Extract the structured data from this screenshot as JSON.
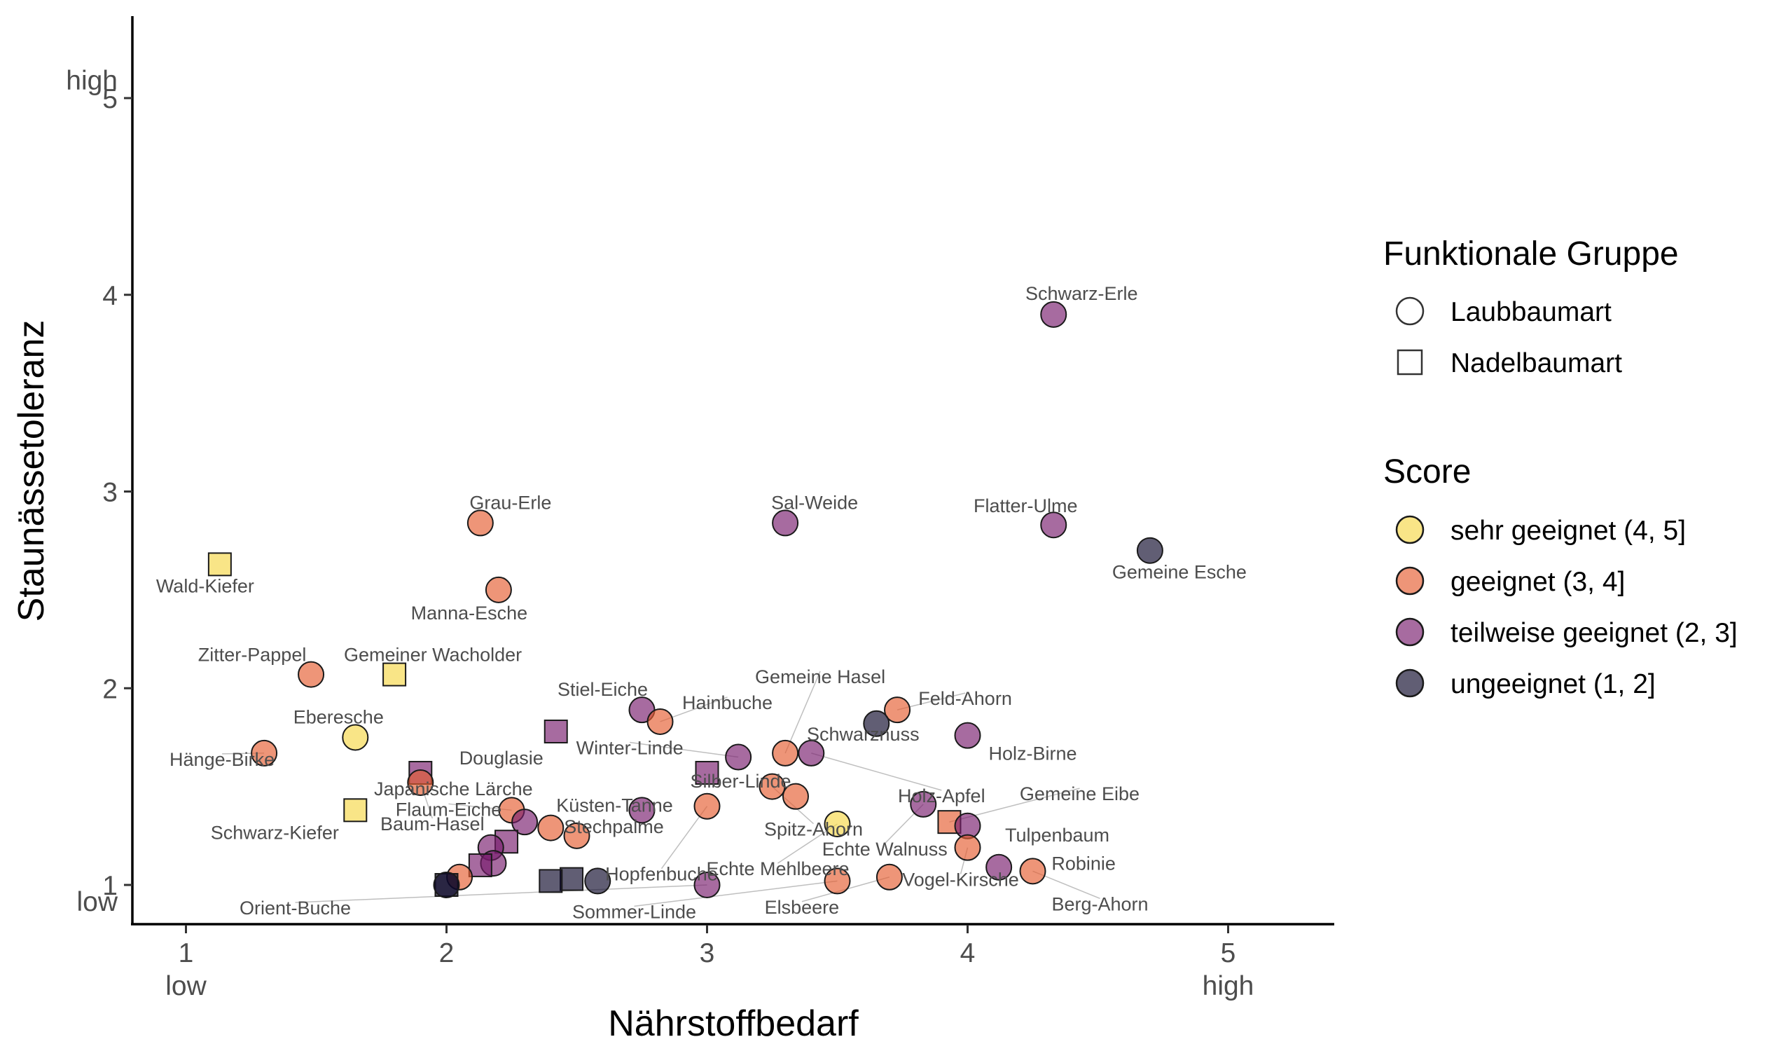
{
  "chart_data": {
    "type": "scatter",
    "xlabel": "Nährstoffbedarf",
    "ylabel": "Staunässetoleranz",
    "xlim": [
      0.8,
      5.4
    ],
    "ylim": [
      0.8,
      5.4
    ],
    "x_ticks": [
      1,
      2,
      3,
      4,
      5
    ],
    "y_ticks": [
      1,
      2,
      3,
      4,
      5
    ],
    "x_tick_labels": [
      "1",
      "2",
      "3",
      "4",
      "5"
    ],
    "y_tick_labels": [
      "1",
      "2",
      "3",
      "4",
      "5"
    ],
    "x_low_label": "low",
    "x_high_label": "high",
    "y_low_label": "low",
    "y_high_label": "high",
    "grid": false,
    "legend_position": "right",
    "shape_legend": {
      "title": "Funktionale Gruppe",
      "items": [
        {
          "label": "Laubbaumart",
          "shape": "circle"
        },
        {
          "label": "Nadelbaumart",
          "shape": "square"
        }
      ]
    },
    "color_legend": {
      "title": "Score",
      "items": [
        {
          "key": "sehr",
          "label": "sehr geeignet (4, 5]",
          "color": "#f6d746"
        },
        {
          "key": "geeignet",
          "label": "geeignet (3, 4]",
          "color": "#e55c30"
        },
        {
          "key": "teilweise",
          "label": "teilweise geeignet (2, 3]",
          "color": "#781c6d"
        },
        {
          "key": "ungeeignet",
          "label": "ungeeignet (1, 2]",
          "color": "#0d0829"
        }
      ]
    },
    "points": [
      {
        "label": "Schwarz-Erle",
        "x": 4.33,
        "y": 3.9,
        "group": "Laubbaumart",
        "score": "teilweise"
      },
      {
        "label": "Sal-Weide",
        "x": 3.3,
        "y": 2.84,
        "group": "Laubbaumart",
        "score": "teilweise"
      },
      {
        "label": "Flatter-Ulme",
        "x": 4.33,
        "y": 2.83,
        "group": "Laubbaumart",
        "score": "teilweise"
      },
      {
        "label": "Gemeine Esche",
        "x": 4.7,
        "y": 2.7,
        "group": "Laubbaumart",
        "score": "ungeeignet"
      },
      {
        "label": "Grau-Erle",
        "x": 2.13,
        "y": 2.84,
        "group": "Laubbaumart",
        "score": "geeignet"
      },
      {
        "label": "Manna-Esche",
        "x": 2.2,
        "y": 2.5,
        "group": "Laubbaumart",
        "score": "geeignet"
      },
      {
        "label": "Wald-Kiefer",
        "x": 1.13,
        "y": 2.63,
        "group": "Nadelbaumart",
        "score": "sehr"
      },
      {
        "label": "Zitter-Pappel",
        "x": 1.48,
        "y": 2.07,
        "group": "Laubbaumart",
        "score": "geeignet"
      },
      {
        "label": "Gemeiner Wacholder",
        "x": 1.8,
        "y": 2.07,
        "group": "Nadelbaumart",
        "score": "sehr"
      },
      {
        "label": "Eberesche",
        "x": 1.65,
        "y": 1.75,
        "group": "Laubbaumart",
        "score": "sehr"
      },
      {
        "label": "Hänge-Birke",
        "x": 1.3,
        "y": 1.67,
        "group": "Laubbaumart",
        "score": "geeignet"
      },
      {
        "label": "Japanische Lärche",
        "x": 1.9,
        "y": 1.57,
        "group": "Nadelbaumart",
        "score": "teilweise"
      },
      {
        "label": "Schwarz-Kiefer",
        "x": 1.65,
        "y": 1.38,
        "group": "Nadelbaumart",
        "score": "sehr"
      },
      {
        "label": "Baum-Hasel",
        "x": 1.9,
        "y": 1.52,
        "group": "Laubbaumart",
        "score": "geeignet"
      },
      {
        "label": "Douglasie",
        "x": 2.42,
        "y": 1.78,
        "group": "Nadelbaumart",
        "score": "teilweise"
      },
      {
        "label": "Stiel-Eiche",
        "x": 2.75,
        "y": 1.89,
        "group": "Laubbaumart",
        "score": "teilweise"
      },
      {
        "label": "Hainbuche",
        "x": 2.82,
        "y": 1.83,
        "group": "Laubbaumart",
        "score": "geeignet"
      },
      {
        "label": "Winter-Linde",
        "x": 3.12,
        "y": 1.65,
        "group": "Laubbaumart",
        "score": "teilweise"
      },
      {
        "label": "Gemeine Hasel",
        "x": 3.3,
        "y": 1.67,
        "group": "Laubbaumart",
        "score": "geeignet"
      },
      {
        "label": "Feld-Ahorn",
        "x": 3.73,
        "y": 1.89,
        "group": "Laubbaumart",
        "score": "geeignet"
      },
      {
        "label": "Schwarznuss",
        "x": 3.65,
        "y": 1.82,
        "group": "Laubbaumart",
        "score": "ungeeignet"
      },
      {
        "label": "Holz-Birne",
        "x": 4.0,
        "y": 1.76,
        "group": "Laubbaumart",
        "score": "teilweise"
      },
      {
        "label": "Holz-Apfel",
        "x": 3.4,
        "y": 1.67,
        "group": "Laubbaumart",
        "score": "teilweise"
      },
      {
        "label": "Silber-Linde",
        "x": 3.0,
        "y": 1.57,
        "group": "Nadelbaumart",
        "score": "teilweise"
      },
      {
        "label": "Küsten-Tanne",
        "x": 2.75,
        "y": 1.38,
        "group": "Laubbaumart",
        "score": "teilweise"
      },
      {
        "label": "Flaum-Eiche",
        "x": 2.25,
        "y": 1.38,
        "group": "Laubbaumart",
        "score": "geeignet"
      },
      {
        "label": "Stechpalme",
        "x": 2.5,
        "y": 1.25,
        "group": "Laubbaumart",
        "score": "geeignet"
      },
      {
        "label": "Hopfenbuche",
        "x": 3.0,
        "y": 1.4,
        "group": "Laubbaumart",
        "score": "geeignet"
      },
      {
        "label": "Spitz-Ahorn",
        "x": 3.25,
        "y": 1.5,
        "group": "Laubbaumart",
        "score": "geeignet"
      },
      {
        "label": "Echte Mehlbeere",
        "x": 3.5,
        "y": 1.31,
        "group": "Laubbaumart",
        "score": "sehr"
      },
      {
        "label": "Echte Walnuss",
        "x": 3.83,
        "y": 1.41,
        "group": "Laubbaumart",
        "score": "teilweise"
      },
      {
        "label": "Gemeine Eibe",
        "x": 3.93,
        "y": 1.32,
        "group": "Nadelbaumart",
        "score": "geeignet"
      },
      {
        "label": "Tulpenbaum",
        "x": 4.0,
        "y": 1.3,
        "group": "Laubbaumart",
        "score": "teilweise"
      },
      {
        "label": "Robinie",
        "x": 4.12,
        "y": 1.09,
        "group": "Laubbaumart",
        "score": "teilweise"
      },
      {
        "label": "Berg-Ahorn",
        "x": 4.25,
        "y": 1.07,
        "group": "Laubbaumart",
        "score": "geeignet"
      },
      {
        "label": "Vogel-Kirsche",
        "x": 4.0,
        "y": 1.19,
        "group": "Laubbaumart",
        "score": "geeignet"
      },
      {
        "label": "Elsbeere",
        "x": 3.7,
        "y": 1.04,
        "group": "Laubbaumart",
        "score": "geeignet"
      },
      {
        "label": "Sommer-Linde",
        "x": 3.5,
        "y": 1.02,
        "group": "Laubbaumart",
        "score": "geeignet"
      },
      {
        "label": "Orient-Buche",
        "x": 3.0,
        "y": 1.0,
        "group": "Laubbaumart",
        "score": "teilweise"
      },
      {
        "label": "",
        "x": 3.34,
        "y": 1.45,
        "group": "Laubbaumart",
        "score": "geeignet"
      },
      {
        "label": "",
        "x": 2.58,
        "y": 1.02,
        "group": "Laubbaumart",
        "score": "ungeeignet"
      },
      {
        "label": "",
        "x": 2.48,
        "y": 1.03,
        "group": "Nadelbaumart",
        "score": "ungeeignet"
      },
      {
        "label": "",
        "x": 2.4,
        "y": 1.02,
        "group": "Nadelbaumart",
        "score": "ungeeignet"
      },
      {
        "label": "",
        "x": 2.4,
        "y": 1.29,
        "group": "Laubbaumart",
        "score": "geeignet"
      },
      {
        "label": "",
        "x": 2.3,
        "y": 1.32,
        "group": "Laubbaumart",
        "score": "teilweise"
      },
      {
        "label": "",
        "x": 2.23,
        "y": 1.22,
        "group": "Nadelbaumart",
        "score": "teilweise"
      },
      {
        "label": "",
        "x": 2.17,
        "y": 1.19,
        "group": "Laubbaumart",
        "score": "teilweise"
      },
      {
        "label": "",
        "x": 2.18,
        "y": 1.11,
        "group": "Laubbaumart",
        "score": "teilweise"
      },
      {
        "label": "",
        "x": 2.13,
        "y": 1.1,
        "group": "Nadelbaumart",
        "score": "teilweise"
      },
      {
        "label": "",
        "x": 2.05,
        "y": 1.04,
        "group": "Laubbaumart",
        "score": "geeignet"
      },
      {
        "label": "",
        "x": 2.0,
        "y": 1.0,
        "group": "Nadelbaumart",
        "score": "ungeeignet"
      },
      {
        "label": "",
        "x": 2.0,
        "y": 1.0,
        "group": "Laubbaumart",
        "score": "ungeeignet"
      }
    ]
  }
}
